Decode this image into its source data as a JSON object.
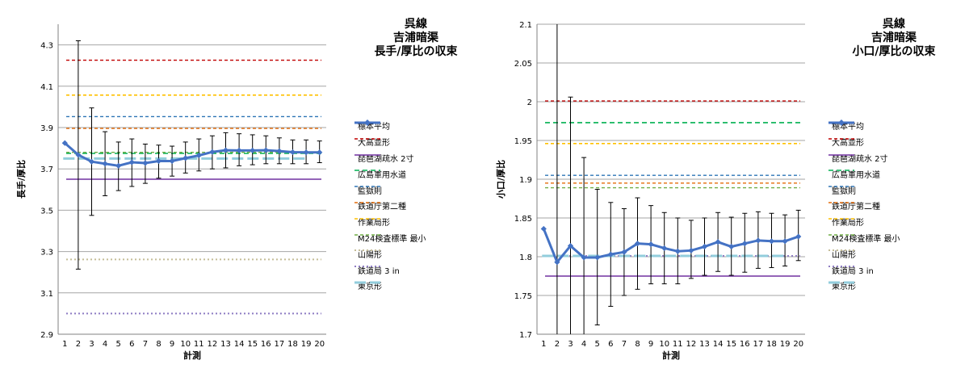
{
  "legend_labels": [
    "標本平均",
    "大高並形",
    "琵琶湖疏水 2寸",
    "広島軍用水道",
    "監獄則",
    "鉄道庁第二種",
    "作業局形",
    "M24検査標準 最小",
    "山陽形",
    "鉄道局 3 in",
    "東京形"
  ],
  "series_style": [
    {
      "color": "#4472C4",
      "dash": "",
      "width": 3,
      "marker": "diamond"
    },
    {
      "color": "#C00000",
      "dash": "4,3",
      "width": 1.4
    },
    {
      "color": "#7030A0",
      "dash": "",
      "width": 1.4
    },
    {
      "color": "#00B050",
      "dash": "6,4",
      "width": 1.6
    },
    {
      "color": "#2E75B6",
      "dash": "4,3",
      "width": 1.4
    },
    {
      "color": "#E46C0A",
      "dash": "4,3",
      "width": 1.4
    },
    {
      "color": "#FFC000",
      "dash": "4,3",
      "width": 1.6
    },
    {
      "color": "#70AD47",
      "dash": "4,3",
      "width": 1.4
    },
    {
      "color": "#C4BD97",
      "dash": "2,3",
      "width": 2
    },
    {
      "color": "#8E7CC3",
      "dash": "2,3",
      "width": 2
    },
    {
      "color": "#92CDDC",
      "dash": "14,5",
      "width": 3
    }
  ],
  "chart_data": [
    {
      "type": "line",
      "title": [
        "呉線",
        "吉浦暗渠",
        "長手/厚比の収束"
      ],
      "xlabel": "計測",
      "ylabel": "長手/厚比",
      "x": [
        1,
        2,
        3,
        4,
        5,
        6,
        7,
        8,
        9,
        10,
        11,
        12,
        13,
        14,
        15,
        16,
        17,
        18,
        19,
        20
      ],
      "ylim": [
        2.9,
        4.4
      ],
      "yticks": [
        "2.9",
        "3.1",
        "3.3",
        "3.5",
        "3.7",
        "3.9",
        "4.1",
        "4.3"
      ],
      "grid": true,
      "legend": "right",
      "series": [
        {
          "name": "標本平均",
          "values": [
            3.825,
            3.768,
            3.735,
            3.725,
            3.715,
            3.732,
            3.728,
            3.738,
            3.738,
            3.752,
            3.765,
            3.782,
            3.79,
            3.789,
            3.789,
            3.79,
            3.786,
            3.781,
            3.78,
            3.78
          ],
          "err_low": [
            3.825,
            3.215,
            3.475,
            3.57,
            3.595,
            3.615,
            3.63,
            3.655,
            3.665,
            3.68,
            3.69,
            3.7,
            3.705,
            3.715,
            3.72,
            3.725,
            3.725,
            3.725,
            3.725,
            3.73
          ],
          "err_high": [
            3.825,
            4.32,
            3.995,
            3.88,
            3.83,
            3.845,
            3.82,
            3.815,
            3.81,
            3.83,
            3.845,
            3.86,
            3.875,
            3.87,
            3.865,
            3.86,
            3.85,
            3.84,
            3.84,
            3.835
          ]
        },
        {
          "name": "大高並形",
          "value": 4.226
        },
        {
          "name": "琵琶湖疏水 2寸",
          "value": 3.65
        },
        {
          "name": "広島軍用水道",
          "value": 3.775
        },
        {
          "name": "監獄則",
          "value": 3.953
        },
        {
          "name": "鉄道庁第二種",
          "value": 3.896
        },
        {
          "name": "作業局形",
          "value": 4.057
        },
        {
          "name": "M24検査標準 最小",
          "value": 3.78
        },
        {
          "name": "山陽形",
          "value": 3.262
        },
        {
          "name": "鉄道局 3 in",
          "value": 3.0
        },
        {
          "name": "東京形",
          "value": 3.75
        }
      ]
    },
    {
      "type": "line",
      "title": [
        "呉線",
        "吉浦暗渠",
        "小口/厚比の収束"
      ],
      "xlabel": "計測",
      "ylabel": "小口/厚比",
      "x": [
        1,
        2,
        3,
        4,
        5,
        6,
        7,
        8,
        9,
        10,
        11,
        12,
        13,
        14,
        15,
        16,
        17,
        18,
        19,
        20
      ],
      "ylim": [
        1.7,
        2.1
      ],
      "yticks": [
        "1.7",
        "1.75",
        "1.8",
        "1.85",
        "1.9",
        "1.95",
        "2",
        "2.05",
        "2.1"
      ],
      "grid": true,
      "legend": "right",
      "series": [
        {
          "name": "標本平均",
          "values": [
            1.836,
            1.793,
            1.814,
            1.799,
            1.799,
            1.803,
            1.806,
            1.817,
            1.816,
            1.811,
            1.807,
            1.808,
            1.813,
            1.819,
            1.813,
            1.817,
            1.821,
            1.82,
            1.82,
            1.826
          ],
          "err_low": [
            1.836,
            1.7,
            1.7,
            1.7,
            1.712,
            1.736,
            1.75,
            1.758,
            1.765,
            1.765,
            1.765,
            1.772,
            1.776,
            1.781,
            1.776,
            1.78,
            1.785,
            1.786,
            1.788,
            1.795
          ],
          "err_high": [
            1.836,
            2.1,
            2.006,
            1.928,
            1.887,
            1.87,
            1.862,
            1.876,
            1.866,
            1.857,
            1.85,
            1.847,
            1.85,
            1.857,
            1.851,
            1.856,
            1.858,
            1.856,
            1.854,
            1.86
          ]
        },
        {
          "name": "大高並形",
          "value": 2.001
        },
        {
          "name": "琵琶湖疏水 2寸",
          "value": 1.775
        },
        {
          "name": "広島軍用水道",
          "value": 1.973
        },
        {
          "name": "監獄則",
          "value": 1.905
        },
        {
          "name": "鉄道庁第二種",
          "value": 1.895
        },
        {
          "name": "作業局形",
          "value": 1.946
        },
        {
          "name": "M24検査標準 最小",
          "value": 1.889
        },
        {
          "name": "山陽形",
          "value": 1.801
        },
        {
          "name": "鉄道局 3 in",
          "value": 1.801
        },
        {
          "name": "東京形",
          "value": 1.801
        }
      ]
    }
  ]
}
